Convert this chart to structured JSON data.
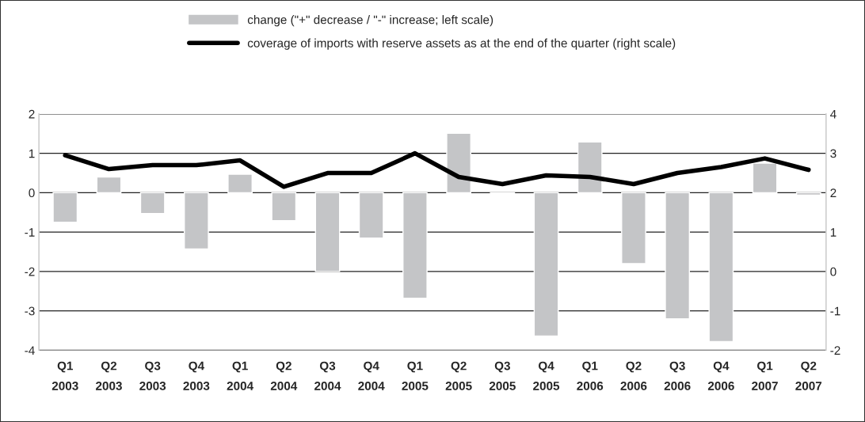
{
  "chart_data": {
    "type": "bar",
    "categories": [
      "Q1\n2003",
      "Q2\n2003",
      "Q3\n2003",
      "Q4\n2003",
      "Q1\n2004",
      "Q2\n2004",
      "Q3\n2004",
      "Q4\n2004",
      "Q1\n2005",
      "Q2\n2005",
      "Q3\n2005",
      "Q4\n2005",
      "Q1\n2006",
      "Q2\n2006",
      "Q3\n2006",
      "Q4\n2006",
      "Q1\n2007",
      "Q2\n2007"
    ],
    "series": [
      {
        "name": "change (\"+\" decrease / \"-\" increase; left scale)",
        "color": "#c4c5c7",
        "values": [
          -0.75,
          0.4,
          -0.53,
          -1.43,
          0.47,
          -0.71,
          -2.0,
          -1.15,
          -2.68,
          1.51,
          -0.01,
          -3.64,
          1.29,
          -1.8,
          -3.2,
          -3.78,
          0.75,
          -0.06
        ]
      },
      {
        "name": "coverage of imports with reserve assets as at the end of the quarter (right scale)",
        "type": "line",
        "axis": "y2",
        "color": "#000000",
        "values": [
          2.95,
          2.6,
          2.7,
          2.7,
          2.82,
          2.15,
          2.5,
          2.5,
          3.0,
          2.4,
          2.22,
          2.44,
          2.4,
          2.22,
          2.5,
          2.65,
          2.87,
          2.58
        ]
      }
    ],
    "ylim": [
      -4,
      2
    ],
    "yticks": [
      -4,
      -3,
      -2,
      -1,
      0,
      1,
      2
    ],
    "y2lim": [
      -2,
      4
    ],
    "y2ticks": [
      -2,
      -1,
      0,
      1,
      2,
      3,
      4
    ],
    "grid": "y",
    "legend": "top",
    "marker": "none",
    "line_style": "solid"
  }
}
